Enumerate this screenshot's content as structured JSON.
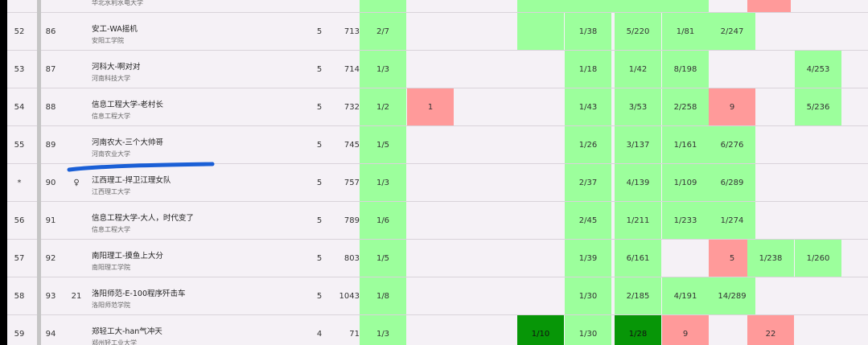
{
  "rows": [
    {
      "rank": "52",
      "id": "86",
      "extra": "",
      "team": "安工-WA摇机",
      "school": "安阳工学院",
      "solved": "5",
      "penalty": "713",
      "cells": [
        {
          "v": "2/7",
          "s": "green"
        },
        {
          "v": "",
          "s": "empty"
        },
        {
          "v": "",
          "s": "green"
        },
        {
          "v": "1/38",
          "s": "green"
        },
        {
          "v": "5/220",
          "s": "green"
        },
        {
          "v": "1/81",
          "s": "green"
        },
        {
          "v": "2/247",
          "s": "green"
        },
        {
          "v": "",
          "s": "empty"
        },
        {
          "v": "",
          "s": "empty"
        }
      ]
    },
    {
      "rank": "53",
      "id": "87",
      "extra": "",
      "team": "河科大-啊对对",
      "school": "河南科技大学",
      "solved": "5",
      "penalty": "714",
      "cells": [
        {
          "v": "1/3",
          "s": "green"
        },
        {
          "v": "",
          "s": "empty"
        },
        {
          "v": "",
          "s": "empty"
        },
        {
          "v": "1/18",
          "s": "green"
        },
        {
          "v": "1/42",
          "s": "green"
        },
        {
          "v": "8/198",
          "s": "green"
        },
        {
          "v": "",
          "s": "empty"
        },
        {
          "v": "",
          "s": "empty"
        },
        {
          "v": "4/253",
          "s": "green"
        }
      ]
    },
    {
      "rank": "54",
      "id": "88",
      "extra": "",
      "team": "信息工程大学-老村长",
      "school": "信息工程大学",
      "solved": "5",
      "penalty": "732",
      "cells": [
        {
          "v": "1/2",
          "s": "green"
        },
        {
          "v": "1",
          "s": "red"
        },
        {
          "v": "",
          "s": "empty"
        },
        {
          "v": "1/43",
          "s": "green"
        },
        {
          "v": "3/53",
          "s": "green"
        },
        {
          "v": "2/258",
          "s": "green"
        },
        {
          "v": "9",
          "s": "red"
        },
        {
          "v": "",
          "s": "empty"
        },
        {
          "v": "5/236",
          "s": "green"
        }
      ]
    },
    {
      "rank": "55",
      "id": "89",
      "extra": "",
      "team": "河南农大-三个大帅哥",
      "school": "河南农业大学",
      "solved": "5",
      "penalty": "745",
      "cells": [
        {
          "v": "1/5",
          "s": "green"
        },
        {
          "v": "",
          "s": "empty"
        },
        {
          "v": "",
          "s": "empty"
        },
        {
          "v": "1/26",
          "s": "green"
        },
        {
          "v": "3/137",
          "s": "green"
        },
        {
          "v": "1/161",
          "s": "green"
        },
        {
          "v": "6/276",
          "s": "green"
        },
        {
          "v": "",
          "s": "empty"
        },
        {
          "v": "",
          "s": "empty"
        }
      ]
    },
    {
      "rank": "*",
      "id": "90",
      "extra": "♀",
      "team": "江西理工-捍卫江理女队",
      "school": "江西理工大学",
      "solved": "5",
      "penalty": "757",
      "cells": [
        {
          "v": "1/3",
          "s": "green"
        },
        {
          "v": "",
          "s": "empty"
        },
        {
          "v": "",
          "s": "empty"
        },
        {
          "v": "2/37",
          "s": "green"
        },
        {
          "v": "4/139",
          "s": "green"
        },
        {
          "v": "1/109",
          "s": "green"
        },
        {
          "v": "6/289",
          "s": "green"
        },
        {
          "v": "",
          "s": "empty"
        },
        {
          "v": "",
          "s": "empty"
        }
      ]
    },
    {
      "rank": "56",
      "id": "91",
      "extra": "",
      "team": "信息工程大学-大人，时代变了",
      "school": "信息工程大学",
      "solved": "5",
      "penalty": "789",
      "cells": [
        {
          "v": "1/6",
          "s": "green"
        },
        {
          "v": "",
          "s": "empty"
        },
        {
          "v": "",
          "s": "empty"
        },
        {
          "v": "2/45",
          "s": "green"
        },
        {
          "v": "1/211",
          "s": "green"
        },
        {
          "v": "1/233",
          "s": "green"
        },
        {
          "v": "1/274",
          "s": "green"
        },
        {
          "v": "",
          "s": "empty"
        },
        {
          "v": "",
          "s": "empty"
        }
      ]
    },
    {
      "rank": "57",
      "id": "92",
      "extra": "",
      "team": "南阳理工-摸鱼上大分",
      "school": "南阳理工学院",
      "solved": "5",
      "penalty": "803",
      "cells": [
        {
          "v": "1/5",
          "s": "green"
        },
        {
          "v": "",
          "s": "empty"
        },
        {
          "v": "",
          "s": "empty"
        },
        {
          "v": "1/39",
          "s": "green"
        },
        {
          "v": "6/161",
          "s": "green"
        },
        {
          "v": "",
          "s": "empty"
        },
        {
          "v": "5",
          "s": "red"
        },
        {
          "v": "1/238",
          "s": "green"
        },
        {
          "v": "1/260",
          "s": "green"
        }
      ]
    },
    {
      "rank": "58",
      "id": "93",
      "extra": "21",
      "team": "洛阳师范-E-100程序歼击车",
      "school": "洛阳师范学院",
      "solved": "5",
      "penalty": "1043",
      "cells": [
        {
          "v": "1/8",
          "s": "green"
        },
        {
          "v": "",
          "s": "empty"
        },
        {
          "v": "",
          "s": "empty"
        },
        {
          "v": "1/30",
          "s": "green"
        },
        {
          "v": "2/185",
          "s": "green"
        },
        {
          "v": "4/191",
          "s": "green"
        },
        {
          "v": "14/289",
          "s": "green"
        },
        {
          "v": "",
          "s": "empty"
        },
        {
          "v": "",
          "s": "empty"
        }
      ]
    },
    {
      "rank": "59",
      "id": "94",
      "extra": "",
      "team": "郑轻工大-han气冲天",
      "school": "郑州轻工业大学",
      "solved": "4",
      "penalty": "71",
      "cells": [
        {
          "v": "1/3",
          "s": "green"
        },
        {
          "v": "",
          "s": "empty"
        },
        {
          "v": "1/10",
          "s": "dgreen"
        },
        {
          "v": "1/30",
          "s": "green"
        },
        {
          "v": "1/28",
          "s": "dgreen"
        },
        {
          "v": "9",
          "s": "red"
        },
        {
          "v": "",
          "s": "empty"
        },
        {
          "v": "22",
          "s": "red"
        },
        {
          "v": "",
          "s": "empty"
        }
      ]
    }
  ],
  "top_partial": {
    "school": "华北水利水电大学"
  }
}
